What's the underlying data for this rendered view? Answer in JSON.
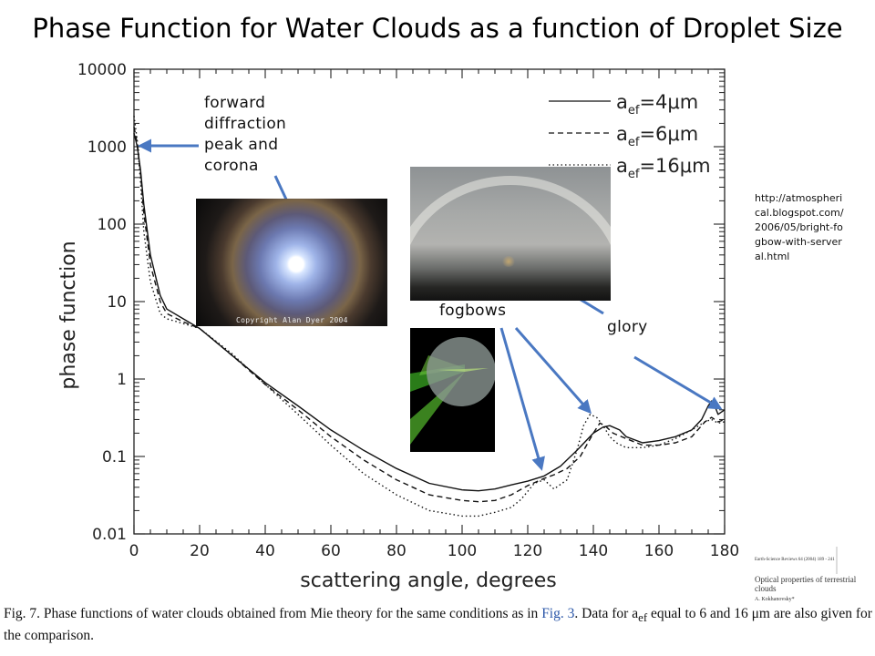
{
  "slide": {
    "title": "Phase Function for Water Clouds as a function of Droplet Size",
    "annotations": {
      "forward": "forward diffraction peak and corona",
      "fogbows": "fogbows",
      "glory": "glory"
    },
    "source_url": "http://atmospherical.blogspot.com/2006/05/bright-fogbow-with-serveral.html",
    "photo_credit": "Copyright Alan Dyer 2004",
    "caption": {
      "part1": "Fig. 7. Phase functions of water clouds obtained from Mie theory for the same conditions as in ",
      "ref": "Fig. 3",
      "part2": ". Data for a",
      "sub": "ef",
      "part3": " equal to 6 and 16 μm are also given for the comparison."
    },
    "journal": {
      "ref": "Earth-Science Reviews 64 (2004) 189 - 241",
      "title": "Optical properties of terrestrial clouds",
      "author": "A. Kokhanovsky*"
    },
    "arrow_color": "#4a78c2"
  },
  "chart_data": {
    "type": "line",
    "xlabel": "scattering angle,  degrees",
    "ylabel": "phase function",
    "xlim": [
      0,
      180
    ],
    "ylim": [
      0.01,
      10000
    ],
    "yscale": "log",
    "xticks": [
      0,
      20,
      40,
      60,
      80,
      100,
      120,
      140,
      160,
      180
    ],
    "yticks": [
      0.01,
      0.1,
      1,
      10,
      100,
      1000,
      10000
    ],
    "ytick_labels": [
      "0.01",
      "0.1",
      "1",
      "10",
      "100",
      "1000",
      "10000"
    ],
    "legend_position": "top-right",
    "series": [
      {
        "name": "a_ef=4μm",
        "legend_main": "a",
        "legend_sub": "ef",
        "legend_tail": "=4μm",
        "style": "solid",
        "x": [
          0,
          1,
          2,
          3,
          5,
          8,
          10,
          15,
          20,
          30,
          40,
          50,
          60,
          70,
          80,
          90,
          100,
          105,
          110,
          115,
          120,
          125,
          130,
          135,
          140,
          143,
          145,
          148,
          150,
          155,
          160,
          165,
          170,
          173,
          175,
          176,
          177,
          178,
          180
        ],
        "y": [
          1500,
          1000,
          500,
          180,
          40,
          12,
          8,
          6,
          4.5,
          2,
          0.9,
          0.45,
          0.22,
          0.12,
          0.07,
          0.045,
          0.037,
          0.036,
          0.038,
          0.043,
          0.048,
          0.056,
          0.075,
          0.12,
          0.2,
          0.24,
          0.25,
          0.22,
          0.18,
          0.15,
          0.16,
          0.18,
          0.22,
          0.3,
          0.45,
          0.52,
          0.45,
          0.35,
          0.4
        ]
      },
      {
        "name": "a_ef=6μm",
        "legend_main": "a",
        "legend_sub": "ef",
        "legend_tail": "=6μm",
        "style": "dashed",
        "x": [
          0,
          1,
          2,
          3,
          5,
          8,
          10,
          15,
          20,
          30,
          40,
          50,
          60,
          70,
          80,
          90,
          100,
          105,
          110,
          115,
          120,
          125,
          128,
          132,
          136,
          140,
          142,
          144,
          146,
          150,
          155,
          160,
          165,
          170,
          174,
          176,
          177,
          178,
          180
        ],
        "y": [
          1800,
          1100,
          450,
          140,
          30,
          10,
          7,
          5.5,
          4.5,
          2,
          0.85,
          0.4,
          0.18,
          0.09,
          0.05,
          0.032,
          0.027,
          0.026,
          0.027,
          0.032,
          0.042,
          0.052,
          0.058,
          0.07,
          0.1,
          0.2,
          0.27,
          0.24,
          0.2,
          0.17,
          0.14,
          0.14,
          0.15,
          0.18,
          0.28,
          0.32,
          0.3,
          0.28,
          0.3
        ]
      },
      {
        "name": "a_ef=16μm",
        "legend_main": "a",
        "legend_sub": "ef",
        "legend_tail": "=16μm",
        "style": "dotted",
        "x": [
          0,
          1,
          2,
          3,
          5,
          8,
          10,
          15,
          20,
          30,
          40,
          50,
          60,
          70,
          80,
          90,
          100,
          105,
          110,
          115,
          118,
          122,
          125,
          128,
          132,
          135,
          137,
          139,
          141,
          143,
          145,
          147,
          150,
          155,
          160,
          165,
          170,
          174,
          176,
          178,
          180
        ],
        "y": [
          2500,
          1200,
          350,
          80,
          18,
          7,
          6,
          5.2,
          4.5,
          2.1,
          0.85,
          0.35,
          0.14,
          0.06,
          0.032,
          0.02,
          0.017,
          0.017,
          0.019,
          0.022,
          0.028,
          0.045,
          0.05,
          0.038,
          0.05,
          0.12,
          0.25,
          0.35,
          0.32,
          0.25,
          0.18,
          0.15,
          0.13,
          0.13,
          0.14,
          0.17,
          0.22,
          0.28,
          0.3,
          0.27,
          0.28
        ]
      }
    ]
  }
}
